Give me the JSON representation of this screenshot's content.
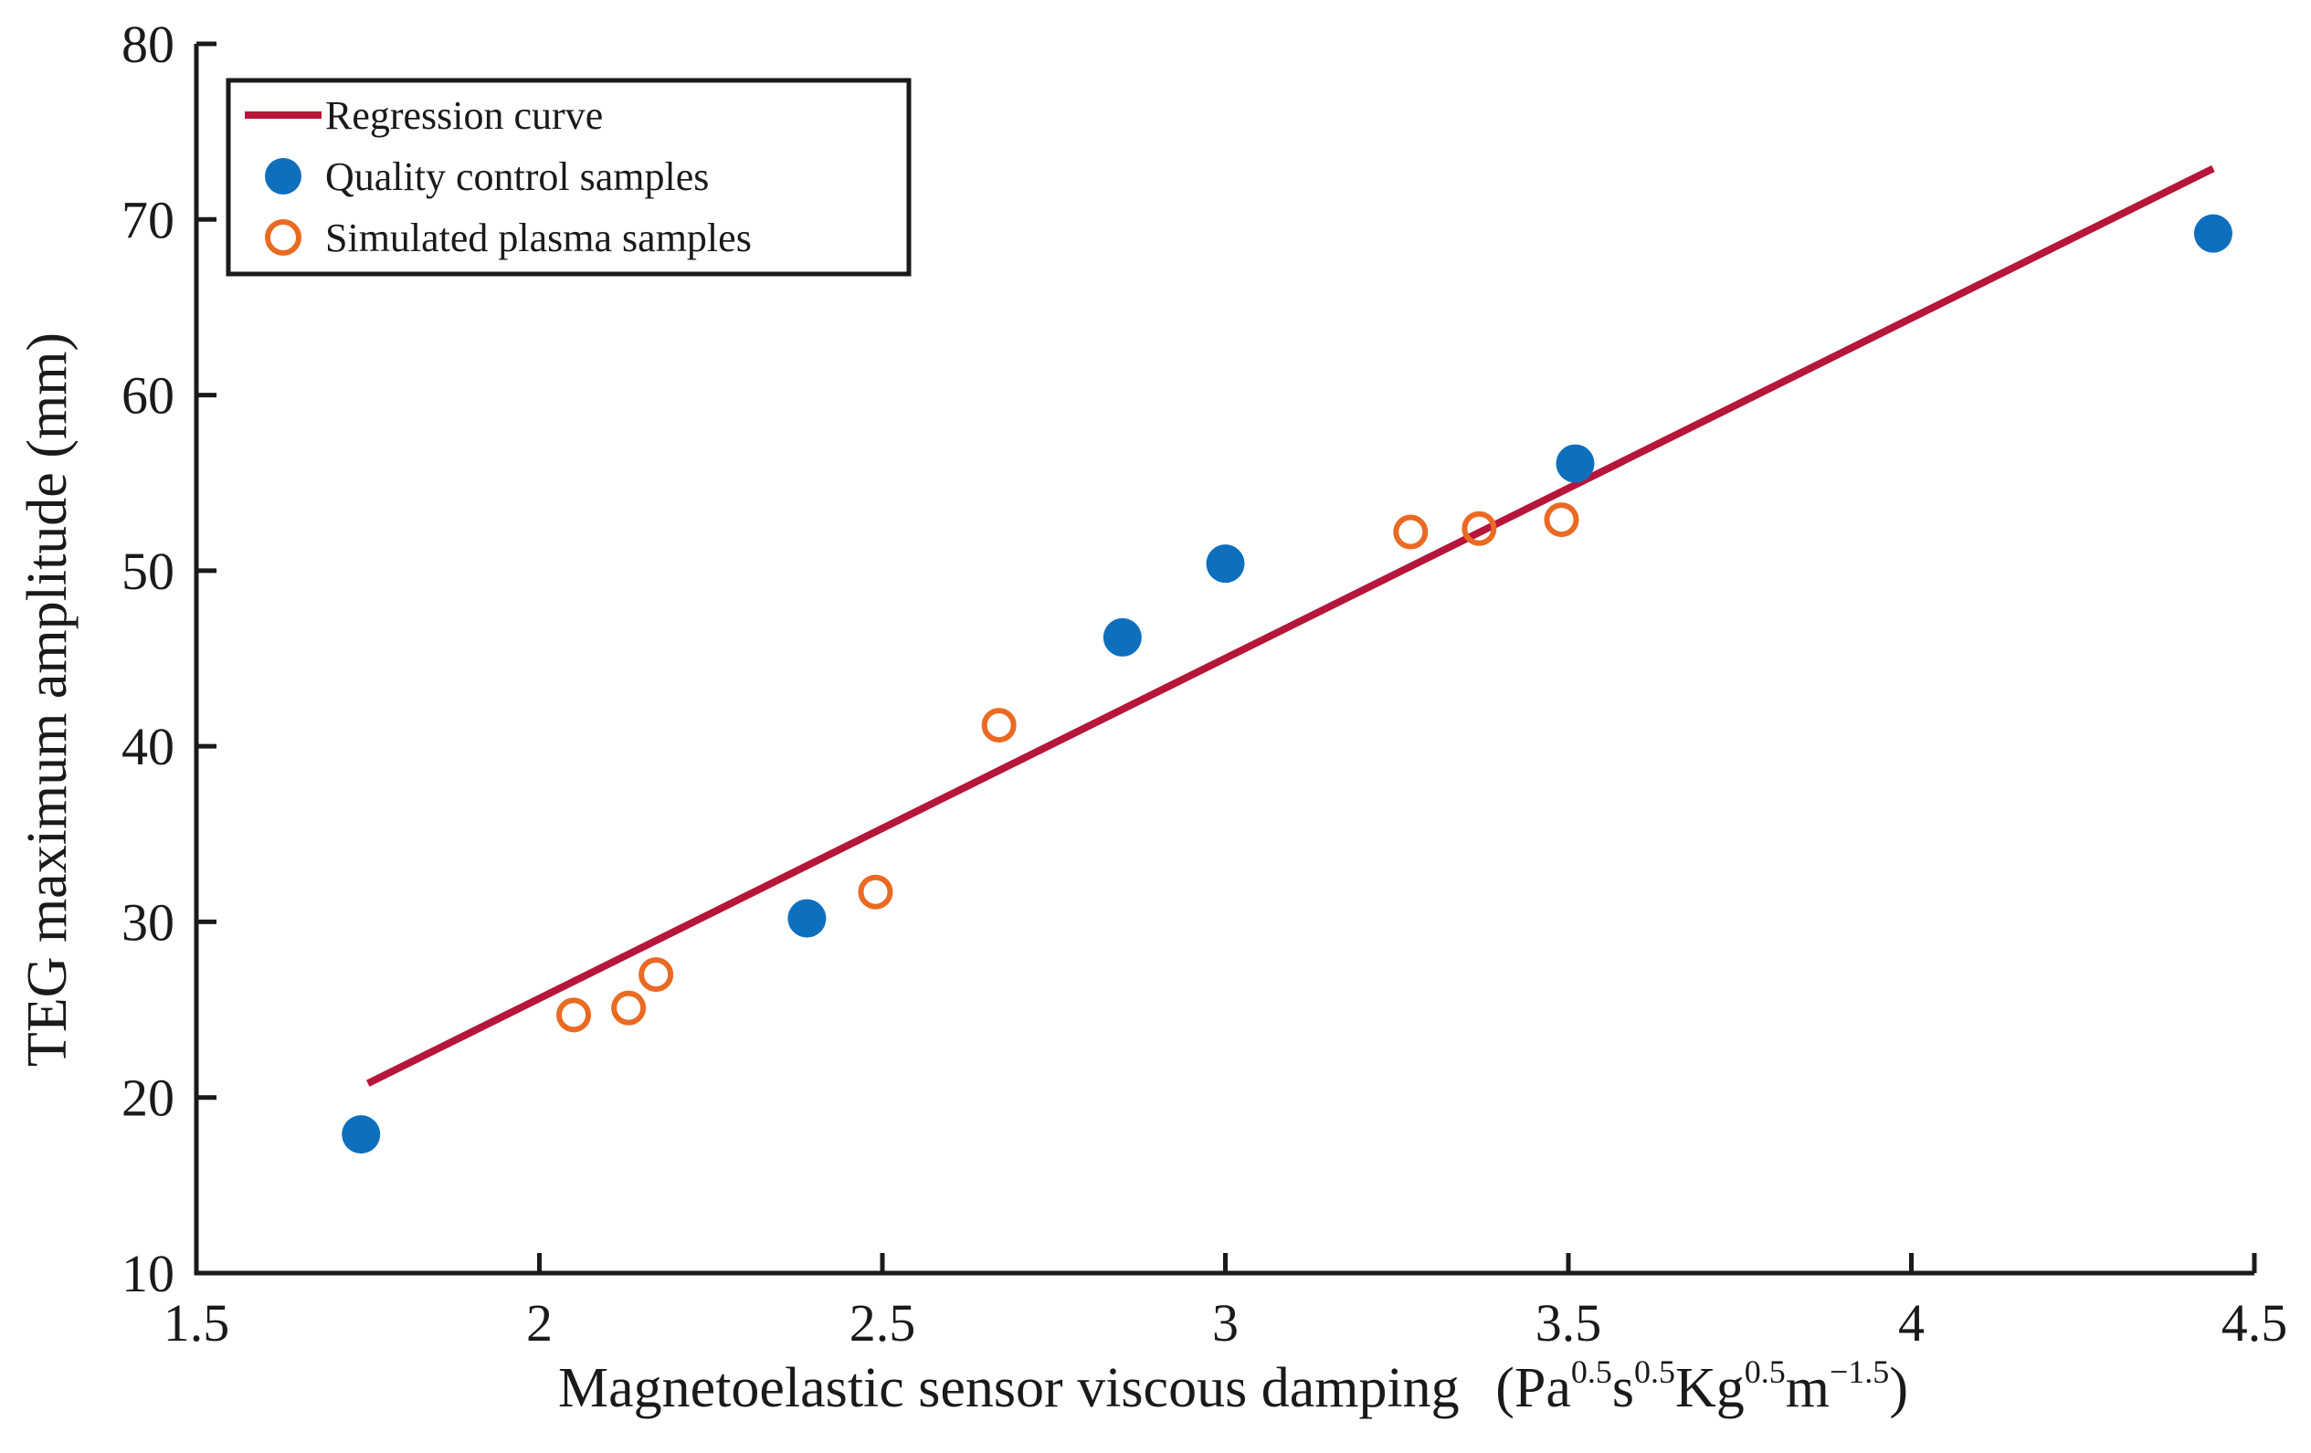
{
  "chart_data": {
    "type": "scatter",
    "title": "",
    "xlabel": {
      "main": "Magnetoelastic sensor viscous damping",
      "unit_open": "(",
      "unit_parts": [
        {
          "base": "Pa",
          "exp": "0.5"
        },
        {
          "base": "s",
          "exp": "0.5"
        },
        {
          "base": "Kg",
          "exp": "0.5"
        },
        {
          "base": "m",
          "exp": "−1.5"
        }
      ],
      "unit_close": ")"
    },
    "ylabel": "TEG maximum amplitude (mm)",
    "xlim": [
      1.5,
      4.5
    ],
    "ylim": [
      10,
      80
    ],
    "x_ticks": [
      1.5,
      2,
      2.5,
      3,
      3.5,
      4,
      4.5
    ],
    "x_tick_labels": [
      "1.5",
      "2",
      "2.5",
      "3",
      "3.5",
      "4",
      "4.5"
    ],
    "y_ticks": [
      10,
      20,
      30,
      40,
      50,
      60,
      70,
      80
    ],
    "y_tick_labels": [
      "10",
      "20",
      "30",
      "40",
      "50",
      "60",
      "70",
      "80"
    ],
    "grid": false,
    "legend_position": "top-left",
    "series": [
      {
        "name": "Regression curve",
        "kind": "line",
        "color": "#b5163a",
        "points": [
          [
            1.75,
            20.8
          ],
          [
            4.44,
            72.9
          ]
        ]
      },
      {
        "name": "Quality control samples",
        "kind": "filled-marker",
        "color": "#0e6fbd",
        "points": [
          [
            1.74,
            17.9
          ],
          [
            2.39,
            30.2
          ],
          [
            2.85,
            46.2
          ],
          [
            3.0,
            50.4
          ],
          [
            3.51,
            56.1
          ],
          [
            4.44,
            69.2
          ]
        ]
      },
      {
        "name": "Simulated plasma samples",
        "kind": "open-marker",
        "color": "#ea6a23",
        "points": [
          [
            2.05,
            24.7
          ],
          [
            2.13,
            25.1
          ],
          [
            2.17,
            27.0
          ],
          [
            2.49,
            31.7
          ],
          [
            2.67,
            41.2
          ],
          [
            3.27,
            52.2
          ],
          [
            3.37,
            52.4
          ],
          [
            3.49,
            52.9
          ]
        ]
      }
    ]
  }
}
